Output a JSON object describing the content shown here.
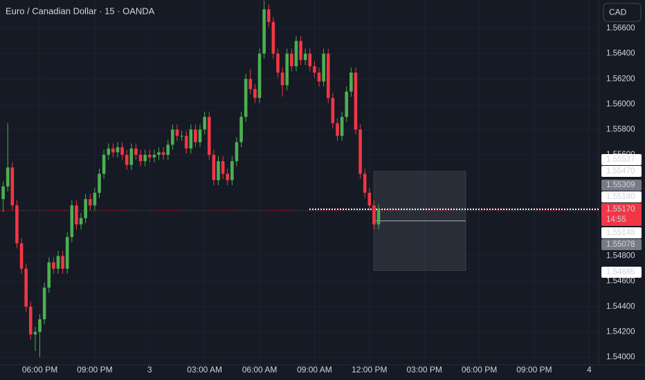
{
  "chart_data": {
    "type": "candlestick",
    "title": "Euro / Canadian Dollar · 15 · OANDA",
    "currency": "CAD",
    "up_color": "#4caf50",
    "down_color": "#f23645",
    "grid": true,
    "ylim": [
      1.5394,
      1.56824
    ],
    "yticks": [
      {
        "value": 1.54,
        "label": "1.54000"
      },
      {
        "value": 1.542,
        "label": "1.54200"
      },
      {
        "value": 1.544,
        "label": "1.54400"
      },
      {
        "value": 1.546,
        "label": "1.54600"
      },
      {
        "value": 1.548,
        "label": "1.54800"
      },
      {
        "value": 1.556,
        "label": "1.55600"
      },
      {
        "value": 1.558,
        "label": "1.55800"
      },
      {
        "value": 1.56,
        "label": "1.56000"
      },
      {
        "value": 1.562,
        "label": "1.56200"
      },
      {
        "value": 1.564,
        "label": "1.56400"
      },
      {
        "value": 1.566,
        "label": "1.56600"
      }
    ],
    "x_tick_labels": [
      "06:00 PM",
      "09:00 PM",
      "3",
      "03:00 AM",
      "06:00 AM",
      "09:00 AM",
      "12:00 PM",
      "03:00 PM",
      "06:00 PM",
      "09:00 PM",
      "4"
    ],
    "ohlc": [
      [
        1.5525,
        1.5539,
        1.5515,
        1.5535
      ],
      [
        1.5535,
        1.5585,
        1.5531,
        1.555
      ],
      [
        1.555,
        1.5554,
        1.5516,
        1.552
      ],
      [
        1.552,
        1.5524,
        1.5486,
        1.549
      ],
      [
        1.549,
        1.5494,
        1.5466,
        1.547
      ],
      [
        1.547,
        1.5474,
        1.5436,
        1.544
      ],
      [
        1.544,
        1.5444,
        1.5414,
        1.5418
      ],
      [
        1.5418,
        1.5424,
        1.5405,
        1.542
      ],
      [
        1.542,
        1.5434,
        1.54,
        1.543
      ],
      [
        1.543,
        1.5459,
        1.5426,
        1.5455
      ],
      [
        1.5455,
        1.5479,
        1.5451,
        1.5475
      ],
      [
        1.5475,
        1.5479,
        1.5466,
        1.547
      ],
      [
        1.547,
        1.5484,
        1.5466,
        1.548
      ],
      [
        1.548,
        1.5484,
        1.5466,
        1.547
      ],
      [
        1.547,
        1.5499,
        1.5466,
        1.5495
      ],
      [
        1.5495,
        1.5524,
        1.5491,
        1.552
      ],
      [
        1.552,
        1.5524,
        1.5501,
        1.5505
      ],
      [
        1.5505,
        1.5514,
        1.5501,
        1.551
      ],
      [
        1.551,
        1.5529,
        1.5506,
        1.5525
      ],
      [
        1.5525,
        1.5529,
        1.5516,
        1.552
      ],
      [
        1.552,
        1.5534,
        1.5516,
        1.553
      ],
      [
        1.553,
        1.5549,
        1.5526,
        1.5545
      ],
      [
        1.5545,
        1.5564,
        1.5541,
        1.556
      ],
      [
        1.556,
        1.5569,
        1.5556,
        1.5565
      ],
      [
        1.5565,
        1.5569,
        1.5558,
        1.5562
      ],
      [
        1.5562,
        1.557,
        1.5558,
        1.5566
      ],
      [
        1.5566,
        1.557,
        1.5556,
        1.556
      ],
      [
        1.556,
        1.5564,
        1.5548,
        1.5552
      ],
      [
        1.5552,
        1.5569,
        1.5548,
        1.5565
      ],
      [
        1.5565,
        1.5569,
        1.5556,
        1.556
      ],
      [
        1.556,
        1.5564,
        1.5551,
        1.5555
      ],
      [
        1.5555,
        1.5564,
        1.5551,
        1.556
      ],
      [
        1.556,
        1.5564,
        1.5554,
        1.5558
      ],
      [
        1.5558,
        1.5564,
        1.5554,
        1.556
      ],
      [
        1.556,
        1.5566,
        1.5556,
        1.5562
      ],
      [
        1.5562,
        1.5566,
        1.5556,
        1.556
      ],
      [
        1.556,
        1.5572,
        1.5556,
        1.5568
      ],
      [
        1.5568,
        1.5584,
        1.5564,
        1.558
      ],
      [
        1.558,
        1.5584,
        1.5571,
        1.5575
      ],
      [
        1.5575,
        1.5579,
        1.5571,
        1.5575
      ],
      [
        1.5575,
        1.5579,
        1.5561,
        1.5565
      ],
      [
        1.5565,
        1.5584,
        1.5561,
        1.558
      ],
      [
        1.558,
        1.5584,
        1.5566,
        1.557
      ],
      [
        1.557,
        1.5584,
        1.5566,
        1.558
      ],
      [
        1.558,
        1.5594,
        1.5576,
        1.559
      ],
      [
        1.559,
        1.5594,
        1.5556,
        1.556
      ],
      [
        1.556,
        1.5564,
        1.5536,
        1.554
      ],
      [
        1.554,
        1.5559,
        1.5536,
        1.5555
      ],
      [
        1.5555,
        1.5559,
        1.5541,
        1.5545
      ],
      [
        1.5545,
        1.5549,
        1.5536,
        1.554
      ],
      [
        1.554,
        1.5559,
        1.5536,
        1.5555
      ],
      [
        1.5555,
        1.5574,
        1.5551,
        1.557
      ],
      [
        1.557,
        1.5594,
        1.5566,
        1.559
      ],
      [
        1.559,
        1.5624,
        1.5586,
        1.562
      ],
      [
        1.562,
        1.5628,
        1.5608,
        1.5612
      ],
      [
        1.5612,
        1.5616,
        1.5601,
        1.5605
      ],
      [
        1.5605,
        1.5644,
        1.5601,
        1.564
      ],
      [
        1.564,
        1.5682,
        1.5636,
        1.5675
      ],
      [
        1.5675,
        1.5679,
        1.5661,
        1.5665
      ],
      [
        1.5665,
        1.5669,
        1.5636,
        1.564
      ],
      [
        1.564,
        1.5644,
        1.5621,
        1.5625
      ],
      [
        1.5625,
        1.5629,
        1.5606,
        1.5615
      ],
      [
        1.5615,
        1.5644,
        1.5611,
        1.564
      ],
      [
        1.564,
        1.5644,
        1.5626,
        1.563
      ],
      [
        1.563,
        1.5654,
        1.5626,
        1.565
      ],
      [
        1.565,
        1.5654,
        1.5631,
        1.5635
      ],
      [
        1.5635,
        1.5644,
        1.5631,
        1.564
      ],
      [
        1.564,
        1.5644,
        1.5626,
        1.563
      ],
      [
        1.563,
        1.5634,
        1.5621,
        1.5625
      ],
      [
        1.5625,
        1.5629,
        1.5614,
        1.5618
      ],
      [
        1.5618,
        1.5644,
        1.5614,
        1.564
      ],
      [
        1.564,
        1.5644,
        1.5601,
        1.5605
      ],
      [
        1.5605,
        1.5609,
        1.5581,
        1.5585
      ],
      [
        1.5585,
        1.5589,
        1.5571,
        1.5575
      ],
      [
        1.5575,
        1.5594,
        1.5571,
        1.559
      ],
      [
        1.559,
        1.5614,
        1.5586,
        1.561
      ],
      [
        1.561,
        1.5629,
        1.5606,
        1.5625
      ],
      [
        1.5625,
        1.5629,
        1.5576,
        1.558
      ],
      [
        1.558,
        1.5584,
        1.5541,
        1.5545
      ],
      [
        1.5545,
        1.5549,
        1.5526,
        1.553
      ],
      [
        1.553,
        1.5534,
        1.5516,
        1.552
      ],
      [
        1.552,
        1.5524,
        1.5501,
        1.5505
      ],
      [
        1.5505,
        1.5521,
        1.5501,
        1.5517
      ]
    ],
    "current_price": {
      "value": 1.5517,
      "label": "1.55170",
      "countdown": "14:55",
      "color": "#f23645"
    },
    "range_box": {
      "top": 1.5547,
      "bottom": 1.54685,
      "line": 1.55078
    },
    "price_labels": [
      {
        "value": 1.55537,
        "label": "1.55537",
        "color": "#ffffff"
      },
      {
        "value": 1.5547,
        "label": "1.55470",
        "color": "#ffffff"
      },
      {
        "value": 1.55309,
        "label": "1.55309",
        "color": "#787b86"
      },
      {
        "value": 1.5518,
        "label": "1.55180",
        "color": "#ffffff"
      },
      {
        "value": 1.55148,
        "label": "1.55148",
        "color": "#ffffff"
      },
      {
        "value": 1.55078,
        "label": "1.55078",
        "color": "#787b86"
      },
      {
        "value": 1.54685,
        "label": "1.54685",
        "color": "#ffffff"
      }
    ]
  }
}
